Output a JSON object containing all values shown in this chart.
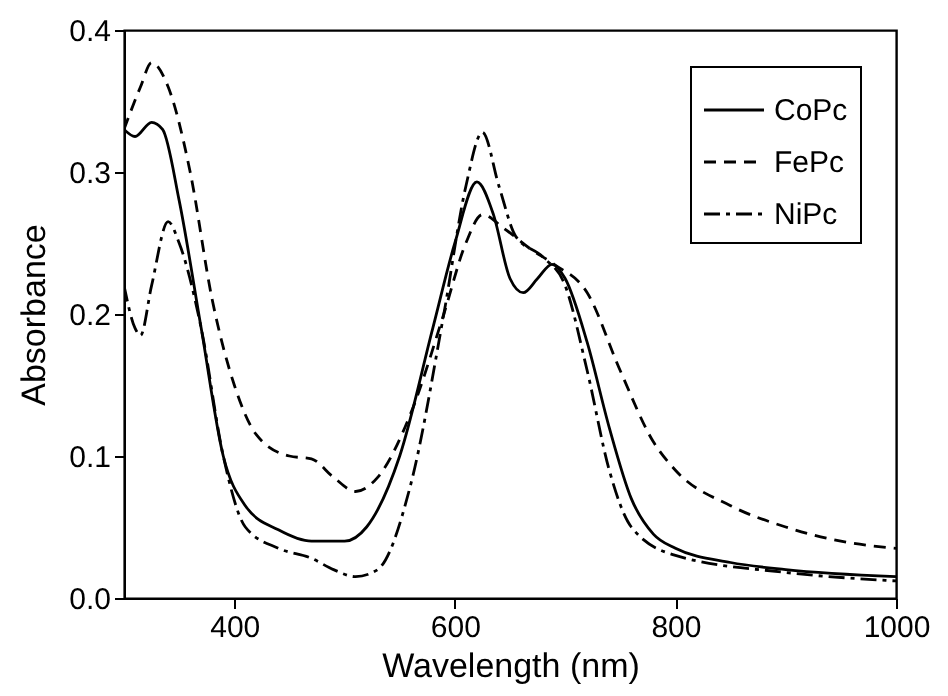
{
  "chart_data": {
    "type": "line",
    "xlabel": "Wavelength (nm)",
    "ylabel": "Absorbance",
    "xlim": [
      300,
      1000
    ],
    "xticks": [
      400,
      600,
      800,
      1000
    ],
    "ylim": [
      0,
      0.4
    ],
    "yticks": [
      {
        "value": 0,
        "label": "0.0"
      },
      0.1,
      0.2,
      0.3,
      0.4
    ],
    "legend": "top right",
    "grid": false,
    "x": [
      300,
      310,
      325,
      335,
      350,
      370,
      390,
      410,
      440,
      470,
      500,
      520,
      550,
      580,
      600,
      620,
      635,
      650,
      662,
      675,
      688,
      700,
      720,
      740,
      760,
      780,
      800,
      850,
      900,
      1000
    ],
    "series": [
      {
        "name": "CoPc",
        "color": "#000000",
        "line_style": "solid",
        "values": [
          0.33,
          0.325,
          0.335,
          0.33,
          0.28,
          0.19,
          0.1,
          0.065,
          0.048,
          0.04,
          0.04,
          0.05,
          0.1,
          0.19,
          0.25,
          0.293,
          0.27,
          0.225,
          0.215,
          0.225,
          0.235,
          0.225,
          0.18,
          0.12,
          0.07,
          0.045,
          0.035,
          0.025,
          0.02,
          0.015
        ]
      },
      {
        "name": "FePc",
        "color": "#000000",
        "line_style": "dashed",
        "x": [
          300,
          315,
          325,
          340,
          360,
          380,
          400,
          420,
          450,
          470,
          490,
          510,
          530,
          560,
          590,
          610,
          625,
          645,
          670,
          690,
          720,
          750,
          780,
          800,
          850,
          900,
          950,
          1000
        ],
        "values": [
          0.33,
          0.36,
          0.377,
          0.36,
          0.3,
          0.21,
          0.15,
          0.115,
          0.1,
          0.098,
          0.085,
          0.075,
          0.085,
          0.13,
          0.2,
          0.25,
          0.27,
          0.26,
          0.245,
          0.235,
          0.215,
          0.16,
          0.11,
          0.09,
          0.065,
          0.05,
          0.04,
          0.035
        ]
      },
      {
        "name": "NiPc",
        "color": "#000000",
        "line_style": "dashdot",
        "x": [
          300,
          310,
          315,
          325,
          340,
          350,
          370,
          390,
          410,
          440,
          470,
          490,
          510,
          530,
          560,
          590,
          610,
          625,
          640,
          655,
          680,
          700,
          720,
          740,
          760,
          800,
          900,
          1000
        ],
        "values": [
          0.22,
          0.19,
          0.185,
          0.22,
          0.265,
          0.25,
          0.19,
          0.1,
          0.05,
          0.035,
          0.028,
          0.02,
          0.015,
          0.02,
          0.08,
          0.2,
          0.29,
          0.328,
          0.29,
          0.255,
          0.24,
          0.22,
          0.16,
          0.09,
          0.05,
          0.03,
          0.018,
          0.012
        ]
      }
    ]
  }
}
